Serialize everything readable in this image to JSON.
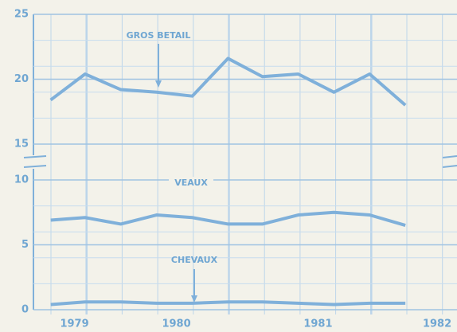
{
  "chart_data": {
    "type": "line",
    "x": [
      1979.53,
      1979.79,
      1980.06,
      1980.33,
      1980.6,
      1980.87,
      1981.13,
      1981.4,
      1981.67,
      1981.94,
      1982.21
    ],
    "xlim": [
      1979.4,
      1982.6
    ],
    "xticks": [
      {
        "value": 1979.71,
        "label": "1979"
      },
      {
        "value": 1980.48,
        "label": "1980"
      },
      {
        "value": 1981.55,
        "label": "1981"
      },
      {
        "value": 1982.45,
        "label": "1982"
      }
    ],
    "ylim_upper": [
      15,
      25
    ],
    "yticks_upper": [
      15,
      20,
      25
    ],
    "ylim": [
      0,
      10
    ],
    "yticks": [
      0,
      5,
      10
    ],
    "grid": true,
    "series": [
      {
        "name": "GROS BETAIL",
        "color": "#7fb0da",
        "axis": "upper",
        "values": [
          18.4,
          20.4,
          19.2,
          19.0,
          18.7,
          21.6,
          20.2,
          20.4,
          19.0,
          20.4,
          18.0
        ]
      },
      {
        "name": "VEAUX",
        "color": "#7fb0da",
        "values": [
          6.9,
          7.1,
          6.6,
          7.3,
          7.1,
          6.6,
          6.6,
          7.3,
          7.5,
          7.3,
          6.5
        ]
      },
      {
        "name": "CHEVAUX",
        "color": "#7fb0da",
        "values": [
          0.4,
          0.6,
          0.6,
          0.5,
          0.5,
          0.6,
          0.6,
          0.5,
          0.4,
          0.5,
          0.5
        ]
      }
    ]
  }
}
